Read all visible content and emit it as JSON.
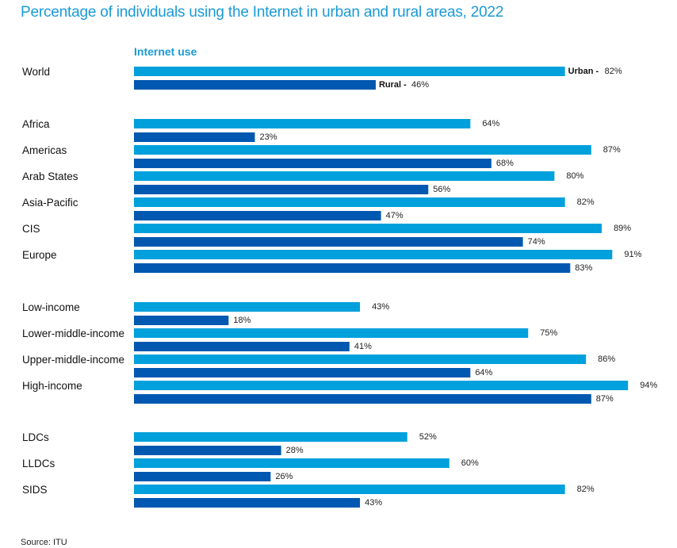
{
  "chart_data": {
    "type": "bar",
    "orientation": "horizontal",
    "title": "Percentage of individuals using the Internet in urban and rural areas, 2022",
    "subtitle": "Internet use",
    "source": "Source: ITU",
    "xlim": [
      0,
      100
    ],
    "grid": false,
    "series_names": [
      "Urban",
      "Rural"
    ],
    "colors": {
      "Urban": "#00a0dc",
      "Rural": "#0058b0"
    },
    "groups": [
      {
        "name": "world",
        "categories": [
          {
            "label": "World",
            "urban": 82,
            "rural": 46,
            "show_series_label": true
          }
        ]
      },
      {
        "name": "regions",
        "categories": [
          {
            "label": "Africa",
            "urban": 64,
            "rural": 23
          },
          {
            "label": "Americas",
            "urban": 87,
            "rural": 68
          },
          {
            "label": "Arab States",
            "urban": 80,
            "rural": 56
          },
          {
            "label": "Asia-Pacific",
            "urban": 82,
            "rural": 47
          },
          {
            "label": "CIS",
            "urban": 89,
            "rural": 74
          },
          {
            "label": "Europe",
            "urban": 91,
            "rural": 83
          }
        ]
      },
      {
        "name": "income",
        "categories": [
          {
            "label": "Low-income",
            "urban": 43,
            "rural": 18
          },
          {
            "label": "Lower-middle-income",
            "urban": 75,
            "rural": 41
          },
          {
            "label": "Upper-middle-income",
            "urban": 86,
            "rural": 64
          },
          {
            "label": "High-income",
            "urban": 94,
            "rural": 87
          }
        ]
      },
      {
        "name": "special",
        "categories": [
          {
            "label": "LDCs",
            "urban": 52,
            "rural": 28
          },
          {
            "label": "LLDCs",
            "urban": 60,
            "rural": 26
          },
          {
            "label": "SIDS",
            "urban": 82,
            "rural": 43
          }
        ]
      }
    ]
  }
}
